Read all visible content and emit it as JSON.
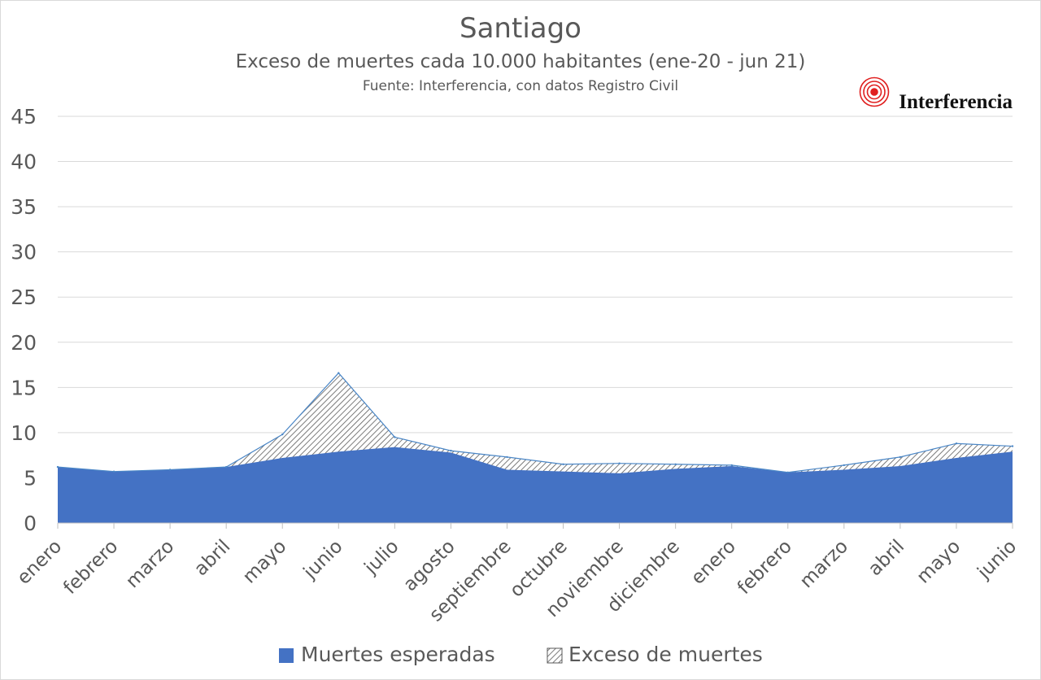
{
  "chart_data": {
    "type": "area",
    "title": "Santiago",
    "subtitle": "Exceso de muertes cada 10.000 habitantes (ene-20  - jun 21)",
    "source": "Fuente: Interferencia, con datos Registro Civil",
    "logo_text": "Interferencia",
    "categories": [
      "enero",
      "febrero",
      "marzo",
      "abril",
      "mayo",
      "junio",
      "julio",
      "agosto",
      "septiembre",
      "octubre",
      "noviembre",
      "diciembre",
      "enero",
      "febrero",
      "marzo",
      "abril",
      "mayo",
      "junio"
    ],
    "ylim": [
      0,
      45
    ],
    "yticks": [
      0,
      5,
      10,
      15,
      20,
      25,
      30,
      35,
      40,
      45
    ],
    "grid": true,
    "legend_position": "bottom",
    "series": [
      {
        "name": "Muertes esperadas",
        "color": "#4472c4",
        "values": [
          6.2,
          5.7,
          5.9,
          6.2,
          7.2,
          7.9,
          8.4,
          7.8,
          5.9,
          5.7,
          5.5,
          6.0,
          6.3,
          5.6,
          5.9,
          6.3,
          7.2,
          7.9
        ]
      },
      {
        "name": "Exceso de muertes",
        "color": "#7f7f7f",
        "values": [
          0.0,
          0.0,
          0.0,
          0.0,
          2.6,
          8.7,
          1.1,
          0.2,
          1.4,
          0.8,
          1.1,
          0.5,
          0.1,
          0.0,
          0.5,
          1.0,
          1.6,
          0.6
        ]
      }
    ]
  }
}
